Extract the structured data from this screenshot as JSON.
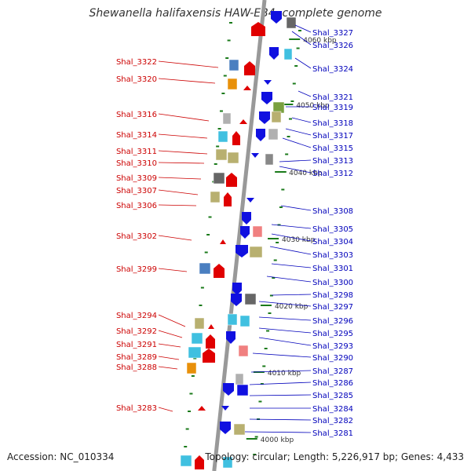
{
  "title": "Shewanella halifaxensis HAW-EB4, complete genome",
  "footer": {
    "accession": "Accession: NC_010334",
    "summary": "Topology: circular; Length: 5,226,917 bp; Genes: 4,433"
  },
  "colors": {
    "forward": "#dd0000",
    "reverse": "#0000cc",
    "backbone": "#999999",
    "tick": "#1a7a1a",
    "leader_left": "#cc0000",
    "leader_right": "#0000bb"
  },
  "scale_labels": [
    "4060 kbp",
    "4050 kbp",
    "4040 kbp",
    "4030 kbp",
    "4020 kbp",
    "4010 kbp",
    "4000 kbp"
  ],
  "genes_left": [
    "Shal_3322",
    "Shal_3320",
    "Shal_3316",
    "Shal_3314",
    "Shal_3311",
    "Shal_3310",
    "Shal_3309",
    "Shal_3307",
    "Shal_3306",
    "Shal_3302",
    "Shal_3299",
    "Shal_3294",
    "Shal_3292",
    "Shal_3291",
    "Shal_3289",
    "Shal_3288",
    "Shal_3283"
  ],
  "genes_right": [
    "Shal_3327",
    "Shal_3326",
    "Shal_3324",
    "Shal_3321",
    "Shal_3319",
    "Shal_3318",
    "Shal_3317",
    "Shal_3315",
    "Shal_3313",
    "Shal_3312",
    "Shal_3308",
    "Shal_3305",
    "Shal_3304",
    "Shal_3303",
    "Shal_3301",
    "Shal_3300",
    "Shal_3298",
    "Shal_3297",
    "Shal_3296",
    "Shal_3295",
    "Shal_3293",
    "Shal_3290",
    "Shal_3287",
    "Shal_3286",
    "Shal_3285",
    "Shal_3284",
    "Shal_3282",
    "Shal_3281"
  ]
}
